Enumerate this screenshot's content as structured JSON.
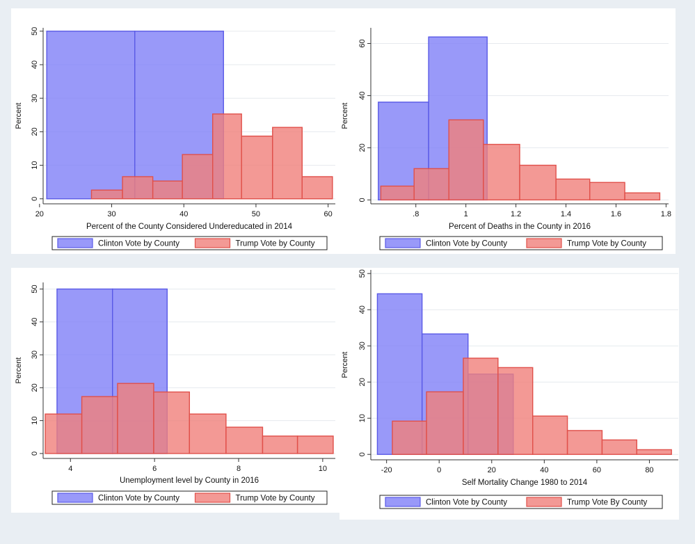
{
  "colors": {
    "page_background": "#e9eef3",
    "plot_background": "#ffffff",
    "clinton_fill": "#7f7ff7",
    "clinton_stroke": "#5a5ae6",
    "trump_fill": "#f07f7a",
    "trump_stroke": "#e0504a",
    "grid": "#e6eaee"
  },
  "chart_data": [
    {
      "type": "histogram",
      "ylabel": "Percent",
      "xlabel": "Percent of the County Considered Undereducated in 2014",
      "xlim": [
        20.5,
        61
      ],
      "ylim": [
        -1.5,
        51
      ],
      "xticks": [
        20,
        30,
        40,
        50,
        60
      ],
      "xtick_labels": [
        "20",
        "30",
        "40",
        "50",
        "60"
      ],
      "yticks": [
        0,
        10,
        20,
        30,
        40,
        50
      ],
      "ytick_labels": [
        "0",
        "10",
        "20",
        "30",
        "40",
        "50"
      ],
      "grid": true,
      "legend": {
        "position": "bottom",
        "labels": [
          "Clinton Vote by County",
          "Trump Vote by County"
        ]
      },
      "series": [
        {
          "name": "Clinton Vote by County",
          "bins": [
            [
              21,
              33.2,
              50
            ],
            [
              33.2,
              45.5,
              50
            ]
          ]
        },
        {
          "name": "Trump Vote by County",
          "bins": [
            [
              27.2,
              31.5,
              2.6
            ],
            [
              31.5,
              35.7,
              6.6
            ],
            [
              35.7,
              39.8,
              5.3
            ],
            [
              39.8,
              44.0,
              13.2
            ],
            [
              44.0,
              48.0,
              25.3
            ],
            [
              48.0,
              52.3,
              18.7
            ],
            [
              52.3,
              56.4,
              21.3
            ],
            [
              56.4,
              60.6,
              6.6
            ]
          ]
        }
      ]
    },
    {
      "type": "histogram",
      "ylabel": "Percent",
      "xlabel": "Percent of Deaths in the County in 2016",
      "xlim": [
        0.62,
        1.81
      ],
      "ylim": [
        -1.5,
        66
      ],
      "xticks": [
        0.8,
        1.0,
        1.2,
        1.4,
        1.6,
        1.8
      ],
      "xtick_labels": [
        ".8",
        "1",
        "1.2",
        "1.4",
        "1.6",
        "1.8"
      ],
      "yticks": [
        0,
        20,
        40,
        60
      ],
      "ytick_labels": [
        "0",
        "20",
        "40",
        "60"
      ],
      "grid": true,
      "legend": {
        "position": "bottom",
        "labels": [
          "Clinton Vote by County",
          "Trump Vote by County"
        ]
      },
      "series": [
        {
          "name": "Clinton Vote by County",
          "bins": [
            [
              0.65,
              0.851,
              37.5
            ],
            [
              0.851,
              1.085,
              62.5
            ]
          ]
        },
        {
          "name": "Trump Vote by County",
          "bins": [
            [
              0.66,
              0.793,
              5.3
            ],
            [
              0.793,
              0.932,
              12
            ],
            [
              0.932,
              1.07,
              30.7
            ],
            [
              1.07,
              1.215,
              21.3
            ],
            [
              1.215,
              1.36,
              13.3
            ],
            [
              1.36,
              1.495,
              8
            ],
            [
              1.495,
              1.635,
              6.7
            ],
            [
              1.635,
              1.775,
              2.7
            ]
          ]
        }
      ]
    },
    {
      "type": "histogram",
      "ylabel": "Percent",
      "xlabel": "Unemployment level by County in 2016",
      "xlim": [
        3.35,
        10.3
      ],
      "ylim": [
        -1.5,
        52
      ],
      "xticks": [
        4,
        6,
        8,
        10
      ],
      "xtick_labels": [
        "4",
        "6",
        "8",
        "10"
      ],
      "yticks": [
        0,
        10,
        20,
        30,
        40,
        50
      ],
      "ytick_labels": [
        "0",
        "10",
        "20",
        "30",
        "40",
        "50"
      ],
      "grid": true,
      "legend": {
        "position": "bottom",
        "labels": [
          "Clinton Vote by County",
          "Trump Vote by County"
        ]
      },
      "series": [
        {
          "name": "Clinton Vote by County",
          "bins": [
            [
              3.68,
              5.0,
              50
            ],
            [
              5.0,
              6.3,
              50
            ]
          ]
        },
        {
          "name": "Trump Vote by County",
          "bins": [
            [
              3.4,
              4.27,
              12
            ],
            [
              4.27,
              5.12,
              17.3
            ],
            [
              5.12,
              5.98,
              21.3
            ],
            [
              5.98,
              6.83,
              18.7
            ],
            [
              6.83,
              7.7,
              12
            ],
            [
              7.7,
              8.57,
              8
            ],
            [
              8.57,
              9.4,
              5.3
            ],
            [
              9.4,
              10.25,
              5.3
            ]
          ]
        }
      ]
    },
    {
      "type": "histogram",
      "ylabel": "Percent",
      "xlabel": "Self Mortality Change 1980 to 2014",
      "xlim": [
        -26,
        91
      ],
      "ylim": [
        -1.5,
        51
      ],
      "xticks": [
        -20,
        0,
        20,
        40,
        60,
        80
      ],
      "xtick_labels": [
        "-20",
        "0",
        "20",
        "40",
        "60",
        "80"
      ],
      "yticks": [
        0,
        10,
        20,
        30,
        40,
        50
      ],
      "ytick_labels": [
        "0",
        "10",
        "20",
        "30",
        "40",
        "50"
      ],
      "grid": true,
      "legend": {
        "position": "bottom",
        "labels": [
          "Clinton Vote by County",
          "Trump Vote By County"
        ]
      },
      "series": [
        {
          "name": "Clinton Vote by County",
          "bins": [
            [
              -23.5,
              -6.5,
              44.4
            ],
            [
              -6.5,
              11,
              33.3
            ],
            [
              11,
              28.2,
              22.2
            ]
          ]
        },
        {
          "name": "Trump Vote By County",
          "bins": [
            [
              -17.8,
              -4.8,
              9.2
            ],
            [
              -4.8,
              9.2,
              17.3
            ],
            [
              9.2,
              22.4,
              26.6
            ],
            [
              22.4,
              35.6,
              24
            ],
            [
              35.6,
              48.8,
              10.6
            ],
            [
              48.8,
              62,
              6.6
            ],
            [
              62,
              75.2,
              4
            ],
            [
              75.2,
              88.4,
              1.3
            ]
          ]
        }
      ]
    }
  ]
}
